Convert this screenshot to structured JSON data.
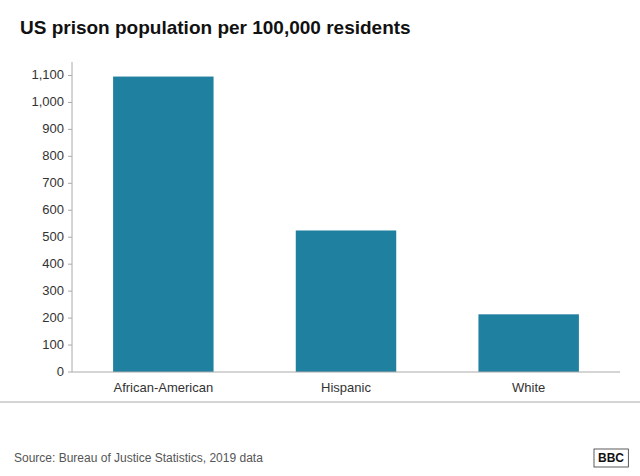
{
  "chart_data": {
    "type": "bar",
    "title": "US prison population per 100,000 residents",
    "categories": [
      "African-American",
      "Hispanic",
      "White"
    ],
    "values": [
      1096,
      525,
      214
    ],
    "color": "#2080a0",
    "ylim": [
      0,
      1150
    ],
    "yticks": [
      0,
      100,
      200,
      300,
      400,
      500,
      600,
      700,
      800,
      900,
      {
        "value": 1000,
        "label": "1,000"
      },
      {
        "value": 1100,
        "label": "1,100"
      }
    ],
    "grid": false,
    "annotations": [
      "Source: Bureau of Justice Statistics, 2019 data",
      "BBC"
    ]
  }
}
